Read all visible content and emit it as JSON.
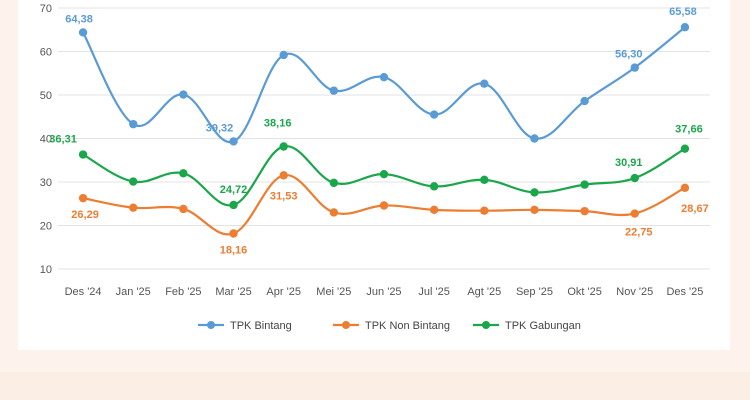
{
  "chart_data": {
    "type": "line",
    "title": "",
    "xlabel": "",
    "ylabel": "",
    "categories": [
      "Des '24",
      "Jan '25",
      "Feb '25",
      "Mar '25",
      "Apr '25",
      "Mei '25",
      "Jun '25",
      "Jul '25",
      "Agt '25",
      "Sep '25",
      "Okt '25",
      "Nov '25",
      "Des '25"
    ],
    "ylim": [
      10,
      70
    ],
    "yticks": [
      "10",
      "20",
      "30",
      "40",
      "50",
      "60",
      "70"
    ],
    "grid": "horizontal",
    "legend": "bottom",
    "series": [
      {
        "name": "TPK Bintang",
        "color": "#5b9bd5",
        "values": [
          64.38,
          43.3,
          50.1,
          39.32,
          59.2,
          51.0,
          54.1,
          45.5,
          52.6,
          40.0,
          48.6,
          56.3,
          65.58
        ],
        "labels": [
          {
            "index": 0,
            "text": "64,38"
          },
          {
            "index": 3,
            "text": "39,32"
          },
          {
            "index": 11,
            "text": "56,30"
          },
          {
            "index": 12,
            "text": "65,58"
          }
        ]
      },
      {
        "name": "TPK Non Bintang",
        "color": "#ed7d31",
        "values": [
          26.29,
          24.1,
          23.8,
          18.16,
          31.53,
          23.0,
          24.6,
          23.6,
          23.4,
          23.6,
          23.3,
          22.75,
          28.67
        ],
        "labels": [
          {
            "index": 0,
            "text": "26,29"
          },
          {
            "index": 3,
            "text": "18,16"
          },
          {
            "index": 4,
            "text": "31,53"
          },
          {
            "index": 11,
            "text": "22,75"
          },
          {
            "index": 12,
            "text": "28,67"
          }
        ]
      },
      {
        "name": "TPK Gabungan",
        "color": "#1aa64a",
        "values": [
          36.31,
          30.1,
          32.0,
          24.72,
          38.16,
          29.8,
          31.8,
          29.0,
          30.5,
          27.6,
          29.4,
          30.91,
          37.66
        ],
        "labels": [
          {
            "index": 0,
            "text": "36,31"
          },
          {
            "index": 3,
            "text": "24,72"
          },
          {
            "index": 4,
            "text": "38,16"
          },
          {
            "index": 11,
            "text": "30,91"
          },
          {
            "index": 12,
            "text": "37,66"
          }
        ]
      }
    ]
  }
}
